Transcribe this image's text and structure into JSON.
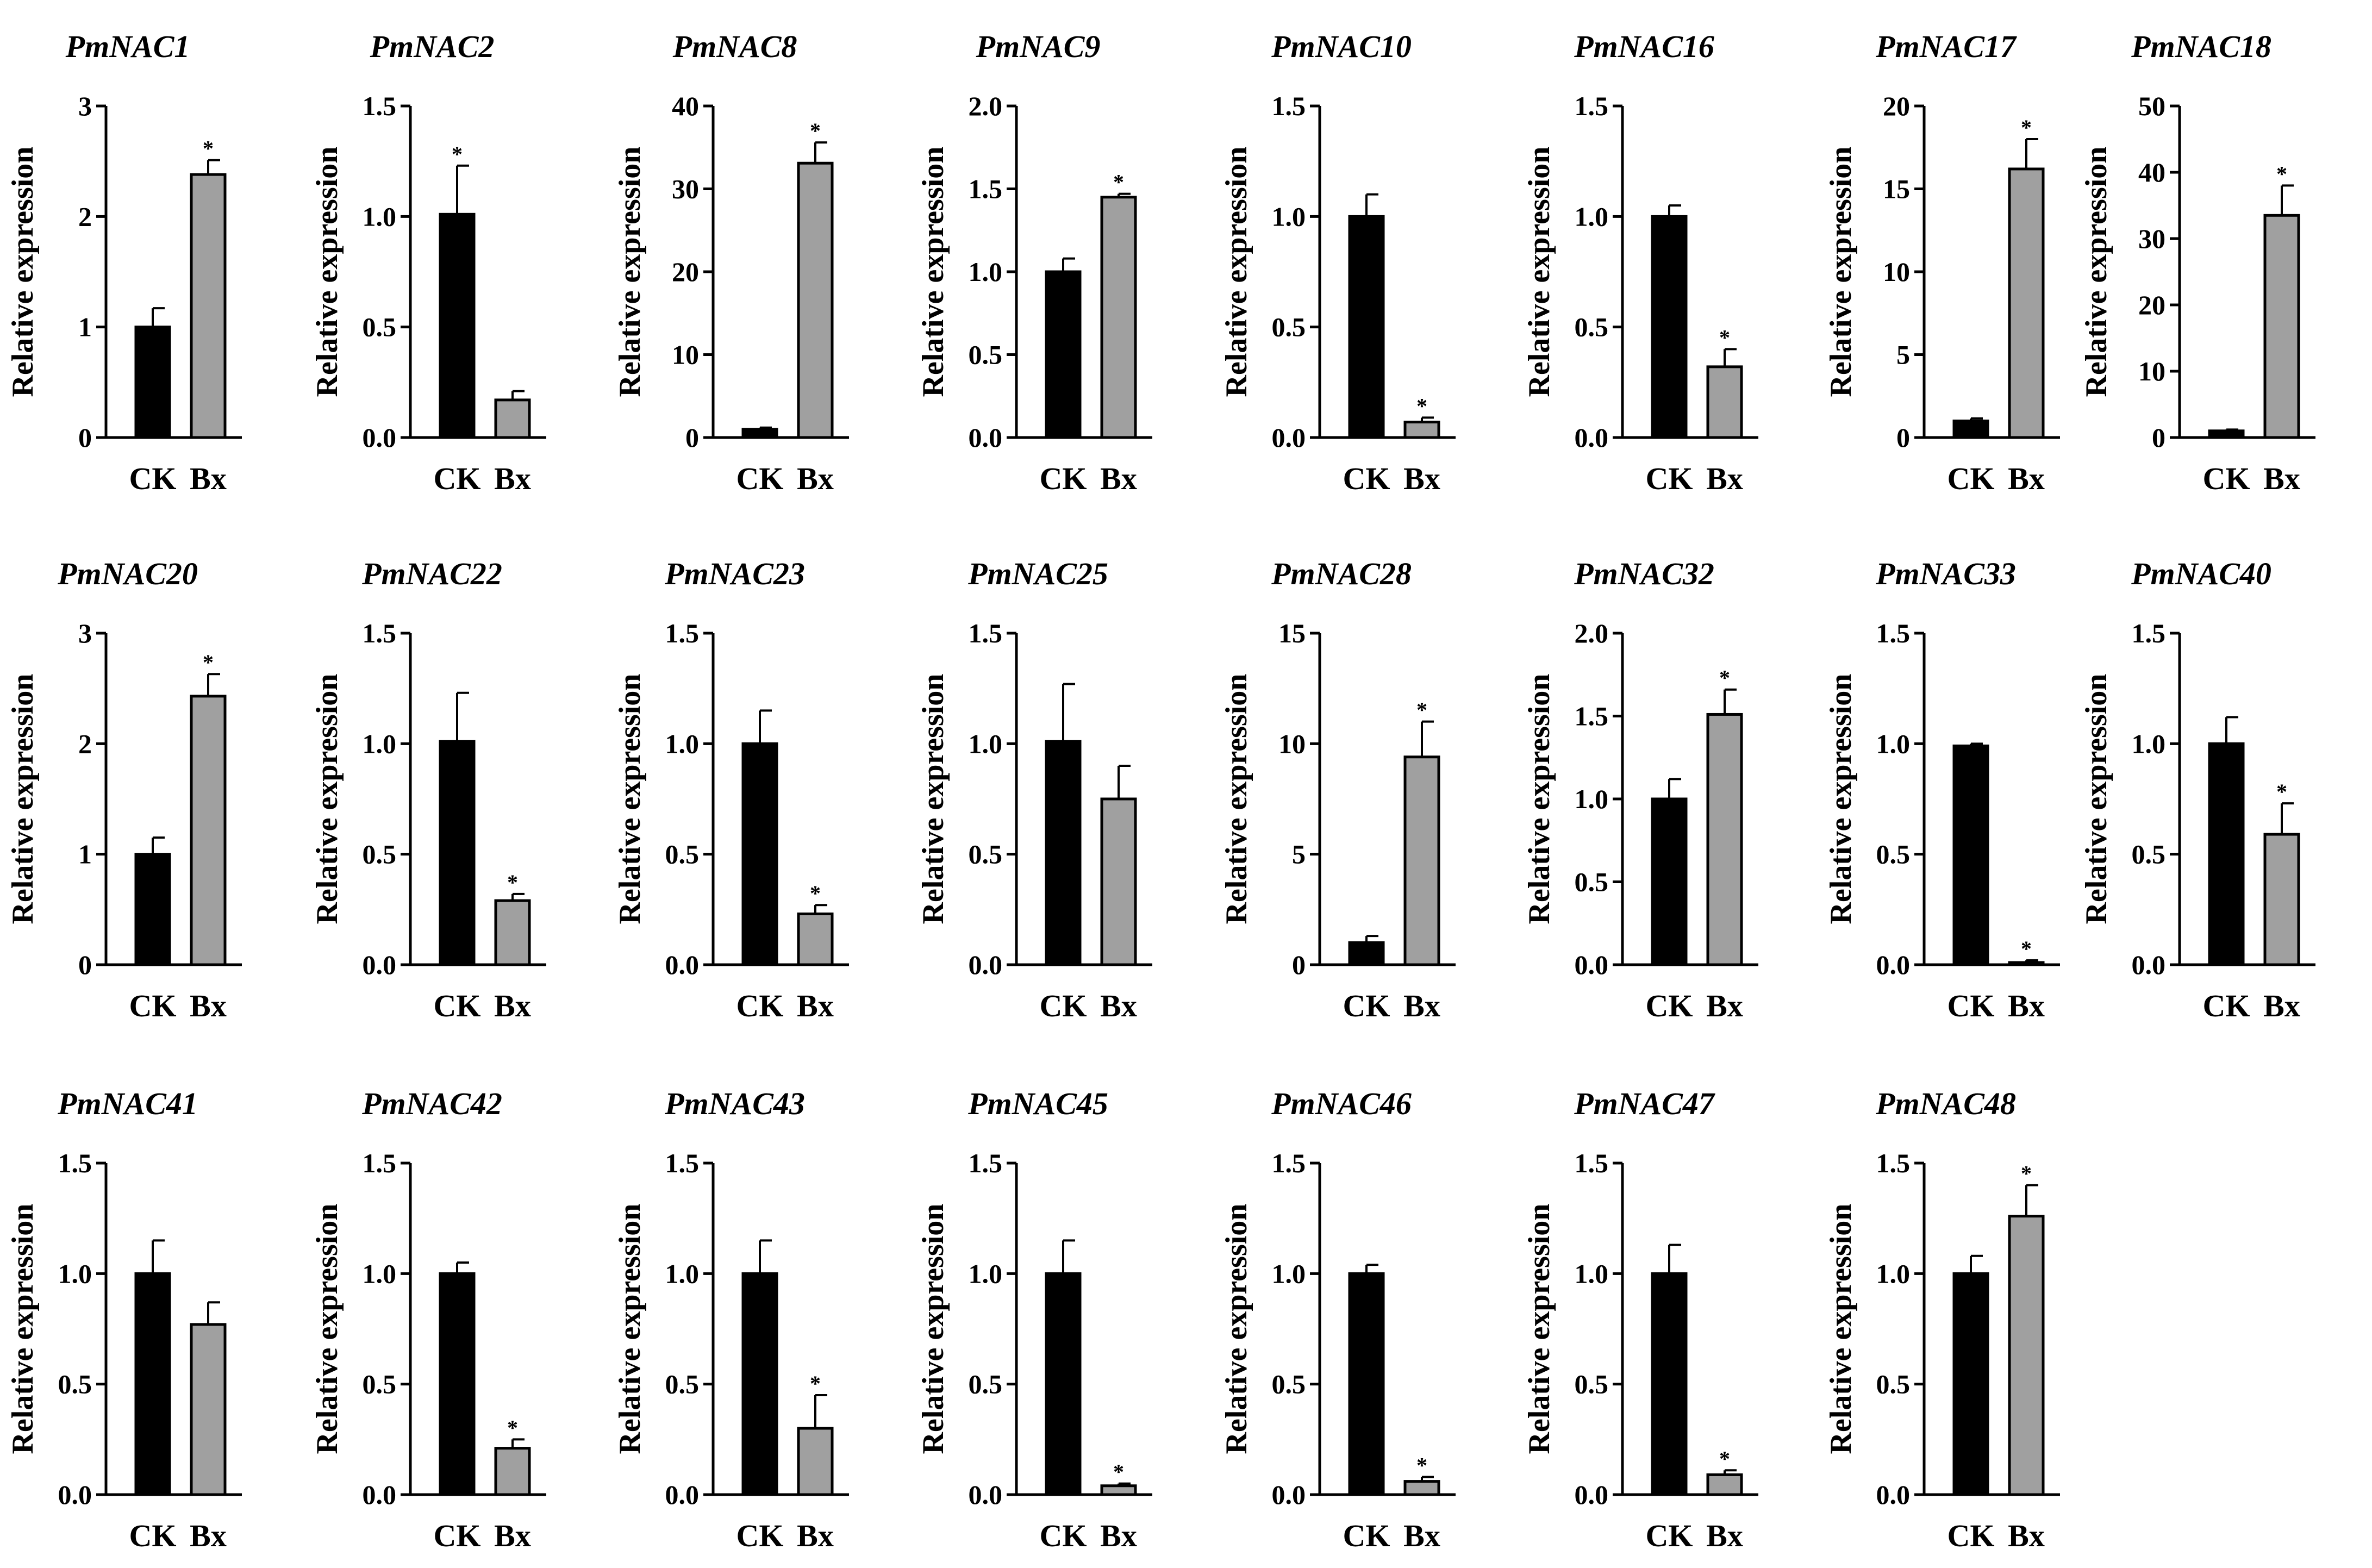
{
  "chart_data": {
    "type": "bar",
    "colors": {
      "CK": "#000000",
      "Bx": "#a0a0a0",
      "axis": "#000000"
    },
    "panels": [
      {
        "title": "PmNAC1",
        "ylabel": "Relative expression",
        "categories": [
          "CK",
          "Bx"
        ],
        "values": [
          1.0,
          2.38
        ],
        "errors": [
          0.17,
          0.13
        ],
        "significant": [
          false,
          true
        ],
        "ylim": [
          0,
          3
        ],
        "yticks": [
          0,
          1,
          2,
          3
        ],
        "ytick_labels": [
          "0",
          "1",
          "2",
          "3"
        ]
      },
      {
        "title": "PmNAC2",
        "ylabel": "Relative expression",
        "categories": [
          "CK",
          "Bx"
        ],
        "values": [
          1.01,
          0.17
        ],
        "errors": [
          0.22,
          0.04
        ],
        "significant": [
          true,
          false
        ],
        "ylim": [
          0,
          1.5
        ],
        "yticks": [
          0,
          0.5,
          1.0,
          1.5
        ],
        "ytick_labels": [
          "0.0",
          "0.5",
          "1.0",
          "1.5"
        ]
      },
      {
        "title": "PmNAC8",
        "ylabel": "Relative expression",
        "categories": [
          "CK",
          "Bx"
        ],
        "values": [
          1.0,
          33.1
        ],
        "errors": [
          0.2,
          2.5
        ],
        "significant": [
          false,
          true
        ],
        "ylim": [
          0,
          40
        ],
        "yticks": [
          0,
          10,
          20,
          30,
          40
        ],
        "ytick_labels": [
          "0",
          "10",
          "20",
          "30",
          "40"
        ]
      },
      {
        "title": "PmNAC9",
        "ylabel": "Relative expression",
        "categories": [
          "CK",
          "Bx"
        ],
        "values": [
          1.0,
          1.45
        ],
        "errors": [
          0.08,
          0.02
        ],
        "significant": [
          false,
          true
        ],
        "ylim": [
          0,
          2.0
        ],
        "yticks": [
          0,
          0.5,
          1.0,
          1.5,
          2.0
        ],
        "ytick_labels": [
          "0.0",
          "0.5",
          "1.0",
          "1.5",
          "2.0"
        ]
      },
      {
        "title": "PmNAC10",
        "ylabel": "Relative expression",
        "categories": [
          "CK",
          "Bx"
        ],
        "values": [
          1.0,
          0.07
        ],
        "errors": [
          0.1,
          0.02
        ],
        "significant": [
          false,
          true
        ],
        "ylim": [
          0,
          1.5
        ],
        "yticks": [
          0,
          0.5,
          1.0,
          1.5
        ],
        "ytick_labels": [
          "0.0",
          "0.5",
          "1.0",
          "1.5"
        ]
      },
      {
        "title": "PmNAC16",
        "ylabel": "Relative expression",
        "categories": [
          "CK",
          "Bx"
        ],
        "values": [
          1.0,
          0.32
        ],
        "errors": [
          0.05,
          0.08
        ],
        "significant": [
          false,
          true
        ],
        "ylim": [
          0,
          1.5
        ],
        "yticks": [
          0,
          0.5,
          1.0,
          1.5
        ],
        "ytick_labels": [
          "0.0",
          "0.5",
          "1.0",
          "1.5"
        ]
      },
      {
        "title": "PmNAC17",
        "ylabel": "Relative expression",
        "categories": [
          "CK",
          "Bx"
        ],
        "values": [
          1.0,
          16.2
        ],
        "errors": [
          0.15,
          1.8
        ],
        "significant": [
          false,
          true
        ],
        "ylim": [
          0,
          20
        ],
        "yticks": [
          0,
          5,
          10,
          15,
          20
        ],
        "ytick_labels": [
          "0",
          "5",
          "10",
          "15",
          "20"
        ]
      },
      {
        "title": "PmNAC18",
        "ylabel": "Relative expression",
        "categories": [
          "CK",
          "Bx"
        ],
        "values": [
          1.0,
          33.5
        ],
        "errors": [
          0.2,
          4.5
        ],
        "significant": [
          false,
          true
        ],
        "ylim": [
          0,
          50
        ],
        "yticks": [
          0,
          10,
          20,
          30,
          40,
          50
        ],
        "ytick_labels": [
          "0",
          "10",
          "20",
          "30",
          "40",
          "50"
        ]
      },
      {
        "title": "PmNAC20",
        "ylabel": "Relative expression",
        "categories": [
          "CK",
          "Bx"
        ],
        "values": [
          1.0,
          2.43
        ],
        "errors": [
          0.15,
          0.2
        ],
        "significant": [
          false,
          true
        ],
        "ylim": [
          0,
          3
        ],
        "yticks": [
          0,
          1,
          2,
          3
        ],
        "ytick_labels": [
          "0",
          "1",
          "2",
          "3"
        ]
      },
      {
        "title": "PmNAC22",
        "ylabel": "Relative expression",
        "categories": [
          "CK",
          "Bx"
        ],
        "values": [
          1.01,
          0.29
        ],
        "errors": [
          0.22,
          0.03
        ],
        "significant": [
          false,
          true
        ],
        "ylim": [
          0,
          1.5
        ],
        "yticks": [
          0,
          0.5,
          1.0,
          1.5
        ],
        "ytick_labels": [
          "0.0",
          "0.5",
          "1.0",
          "1.5"
        ]
      },
      {
        "title": "PmNAC23",
        "ylabel": "Relative expression",
        "categories": [
          "CK",
          "Bx"
        ],
        "values": [
          1.0,
          0.23
        ],
        "errors": [
          0.15,
          0.04
        ],
        "significant": [
          false,
          true
        ],
        "ylim": [
          0,
          1.5
        ],
        "yticks": [
          0,
          0.5,
          1.0,
          1.5
        ],
        "ytick_labels": [
          "0.0",
          "0.5",
          "1.0",
          "1.5"
        ]
      },
      {
        "title": "PmNAC25",
        "ylabel": "Relative expression",
        "categories": [
          "CK",
          "Bx"
        ],
        "values": [
          1.01,
          0.75
        ],
        "errors": [
          0.26,
          0.15
        ],
        "significant": [
          false,
          false
        ],
        "ylim": [
          0,
          1.5
        ],
        "yticks": [
          0,
          0.5,
          1.0,
          1.5
        ],
        "ytick_labels": [
          "0.0",
          "0.5",
          "1.0",
          "1.5"
        ]
      },
      {
        "title": "PmNAC28",
        "ylabel": "Relative expression",
        "categories": [
          "CK",
          "Bx"
        ],
        "values": [
          1.0,
          9.4
        ],
        "errors": [
          0.3,
          1.6
        ],
        "significant": [
          false,
          true
        ],
        "ylim": [
          0,
          15
        ],
        "yticks": [
          0,
          5,
          10,
          15
        ],
        "ytick_labels": [
          "0",
          "5",
          "10",
          "15"
        ]
      },
      {
        "title": "PmNAC32",
        "ylabel": "Relative expression",
        "categories": [
          "CK",
          "Bx"
        ],
        "values": [
          1.0,
          1.51
        ],
        "errors": [
          0.12,
          0.15
        ],
        "significant": [
          false,
          true
        ],
        "ylim": [
          0,
          2.0
        ],
        "yticks": [
          0,
          0.5,
          1.0,
          1.5,
          2.0
        ],
        "ytick_labels": [
          "0.0",
          "0.5",
          "1.0",
          "1.5",
          "2.0"
        ]
      },
      {
        "title": "PmNAC33",
        "ylabel": "Relative expression",
        "categories": [
          "CK",
          "Bx"
        ],
        "values": [
          0.99,
          0.01
        ],
        "errors": [
          0.01,
          0.01
        ],
        "significant": [
          false,
          true
        ],
        "ylim": [
          0,
          1.5
        ],
        "yticks": [
          0,
          0.5,
          1.0,
          1.5
        ],
        "ytick_labels": [
          "0.0",
          "0.5",
          "1.0",
          "1.5"
        ]
      },
      {
        "title": "PmNAC40",
        "ylabel": "Relative expression",
        "categories": [
          "CK",
          "Bx"
        ],
        "values": [
          1.0,
          0.59
        ],
        "errors": [
          0.12,
          0.14
        ],
        "significant": [
          false,
          true
        ],
        "ylim": [
          0,
          1.5
        ],
        "yticks": [
          0,
          0.5,
          1.0,
          1.5
        ],
        "ytick_labels": [
          "0.0",
          "0.5",
          "1.0",
          "1.5"
        ]
      },
      {
        "title": "PmNAC41",
        "ylabel": "Relative expression",
        "categories": [
          "CK",
          "Bx"
        ],
        "values": [
          1.0,
          0.77
        ],
        "errors": [
          0.15,
          0.1
        ],
        "significant": [
          false,
          false
        ],
        "ylim": [
          0,
          1.5
        ],
        "yticks": [
          0,
          0.5,
          1.0,
          1.5
        ],
        "ytick_labels": [
          "0.0",
          "0.5",
          "1.0",
          "1.5"
        ]
      },
      {
        "title": "PmNAC42",
        "ylabel": "Relative expression",
        "categories": [
          "CK",
          "Bx"
        ],
        "values": [
          1.0,
          0.21
        ],
        "errors": [
          0.05,
          0.04
        ],
        "significant": [
          false,
          true
        ],
        "ylim": [
          0,
          1.5
        ],
        "yticks": [
          0,
          0.5,
          1.0,
          1.5
        ],
        "ytick_labels": [
          "0.0",
          "0.5",
          "1.0",
          "1.5"
        ]
      },
      {
        "title": "PmNAC43",
        "ylabel": "Relative expression",
        "categories": [
          "CK",
          "Bx"
        ],
        "values": [
          1.0,
          0.3
        ],
        "errors": [
          0.15,
          0.15
        ],
        "significant": [
          false,
          true
        ],
        "ylim": [
          0,
          1.5
        ],
        "yticks": [
          0,
          0.5,
          1.0,
          1.5
        ],
        "ytick_labels": [
          "0.0",
          "0.5",
          "1.0",
          "1.5"
        ]
      },
      {
        "title": "PmNAC45",
        "ylabel": "Relative expression",
        "categories": [
          "CK",
          "Bx"
        ],
        "values": [
          1.0,
          0.04
        ],
        "errors": [
          0.15,
          0.01
        ],
        "significant": [
          false,
          true
        ],
        "ylim": [
          0,
          1.5
        ],
        "yticks": [
          0,
          0.5,
          1.0,
          1.5
        ],
        "ytick_labels": [
          "0.0",
          "0.5",
          "1.0",
          "1.5"
        ]
      },
      {
        "title": "PmNAC46",
        "ylabel": "Relative expression",
        "categories": [
          "CK",
          "Bx"
        ],
        "values": [
          1.0,
          0.06
        ],
        "errors": [
          0.04,
          0.02
        ],
        "significant": [
          false,
          true
        ],
        "ylim": [
          0,
          1.5
        ],
        "yticks": [
          0,
          0.5,
          1.0,
          1.5
        ],
        "ytick_labels": [
          "0.0",
          "0.5",
          "1.0",
          "1.5"
        ]
      },
      {
        "title": "PmNAC47",
        "ylabel": "Relative expression",
        "categories": [
          "CK",
          "Bx"
        ],
        "values": [
          1.0,
          0.09
        ],
        "errors": [
          0.13,
          0.02
        ],
        "significant": [
          false,
          true
        ],
        "ylim": [
          0,
          1.5
        ],
        "yticks": [
          0,
          0.5,
          1.0,
          1.5
        ],
        "ytick_labels": [
          "0.0",
          "0.5",
          "1.0",
          "1.5"
        ]
      },
      {
        "title": "PmNAC48",
        "ylabel": "Relative expression",
        "categories": [
          "CK",
          "Bx"
        ],
        "values": [
          1.0,
          1.26
        ],
        "errors": [
          0.08,
          0.14
        ],
        "significant": [
          false,
          true
        ],
        "ylim": [
          0,
          1.5
        ],
        "yticks": [
          0,
          0.5,
          1.0,
          1.5
        ],
        "ytick_labels": [
          "0.0",
          "0.5",
          "1.0",
          "1.5"
        ]
      }
    ]
  },
  "significance_marker": "*"
}
